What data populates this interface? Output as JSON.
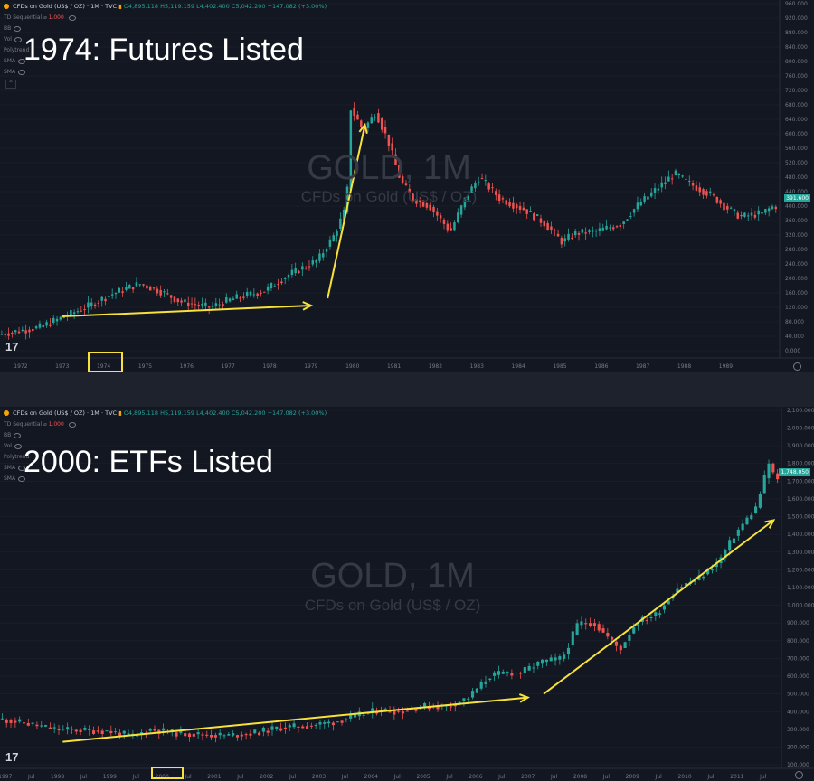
{
  "colors": {
    "bg": "#131722",
    "up": "#26a69a",
    "down": "#ef5350",
    "arrow": "#f7e13b",
    "grid": "#1e222d",
    "axis": "#787b86",
    "title": "#ffffff",
    "watermark": "#363a45"
  },
  "charts": [
    {
      "header": {
        "symbol": "CFDs on Gold (US$ / OZ) · 1M · TVC",
        "ohlc": "O4,895.118 H5,119.159 L4,402.400 C5,042.200 +147.082 (+3.00%)"
      },
      "indicators": [
        {
          "name": "TD Sequential",
          "value": "1.000"
        },
        {
          "name": "BB",
          "value": ""
        },
        {
          "name": "Vol",
          "value": ""
        },
        {
          "name": "Polytrend",
          "value": ""
        },
        {
          "name": "SMA",
          "value": ""
        },
        {
          "name": "SMA",
          "value": ""
        }
      ],
      "collapse_icon": "chevron-up-icon",
      "annotation": "1974: Futures Listed",
      "watermark": {
        "symbol": "GOLD, 1M",
        "name": "CFDs on Gold (US$ / OZ)"
      },
      "price_tag": "391.600",
      "logo": "17",
      "highlighted_tick": "1974"
    },
    {
      "header": {
        "symbol": "CFDs on Gold (US$ / OZ) · 1M · TVC",
        "ohlc": "O4,895.118 H5,119.159 L4,402.400 C5,042.200 +147.082 (+3.00%)"
      },
      "indicators": [
        {
          "name": "TD Sequential",
          "value": "1.000"
        },
        {
          "name": "BB",
          "value": ""
        },
        {
          "name": "Vol",
          "value": ""
        },
        {
          "name": "Polytrend",
          "value": ""
        },
        {
          "name": "SMA",
          "value": ""
        },
        {
          "name": "SMA",
          "value": ""
        }
      ],
      "annotation": "2000: ETFs Listed",
      "watermark": {
        "symbol": "GOLD, 1M",
        "name": "CFDs on Gold (US$ / OZ)"
      },
      "price_tag": "1,748.050",
      "logo": "17",
      "highlighted_tick": "2000"
    }
  ],
  "chart_data": [
    {
      "type": "candlestick",
      "title": "GOLD, 1M",
      "subtitle": "CFDs on Gold (US$ / OZ)",
      "x_labels": [
        "1972",
        "1973",
        "1974",
        "1975",
        "1976",
        "1977",
        "1978",
        "1979",
        "1980",
        "1981",
        "1982",
        "1983",
        "1984",
        "1985",
        "1986",
        "1987",
        "1988",
        "1989"
      ],
      "y_ticks": [
        "960.000",
        "920.000",
        "880.000",
        "840.000",
        "800.000",
        "760.000",
        "720.000",
        "680.000",
        "640.000",
        "600.000",
        "560.000",
        "520.000",
        "480.000",
        "440.000",
        "400.000",
        "360.000",
        "320.000",
        "280.000",
        "240.000",
        "200.000",
        "160.000",
        "120.000",
        "80.000",
        "40.000",
        "0.000"
      ],
      "ylim": [
        -20,
        970
      ],
      "x_range": [
        1971.5,
        1990.3
      ],
      "trend_points": [
        [
          1971.5,
          45
        ],
        [
          1972.5,
          65
        ],
        [
          1973.3,
          105
        ],
        [
          1973.7,
          125
        ],
        [
          1974.2,
          155
        ],
        [
          1974.9,
          185
        ],
        [
          1975.4,
          165
        ],
        [
          1975.9,
          135
        ],
        [
          1976.6,
          120
        ],
        [
          1977.2,
          145
        ],
        [
          1977.9,
          165
        ],
        [
          1978.5,
          210
        ],
        [
          1979.2,
          250
        ],
        [
          1979.6,
          320
        ],
        [
          1979.9,
          400
        ],
        [
          1980.0,
          670
        ],
        [
          1980.3,
          610
        ],
        [
          1980.6,
          660
        ],
        [
          1980.9,
          580
        ],
        [
          1981.2,
          470
        ],
        [
          1981.5,
          420
        ],
        [
          1981.9,
          400
        ],
        [
          1982.4,
          330
        ],
        [
          1982.8,
          430
        ],
        [
          1983.1,
          480
        ],
        [
          1983.6,
          420
        ],
        [
          1984.2,
          390
        ],
        [
          1984.7,
          350
        ],
        [
          1985.1,
          300
        ],
        [
          1985.4,
          325
        ],
        [
          1985.9,
          330
        ],
        [
          1986.5,
          350
        ],
        [
          1986.9,
          400
        ],
        [
          1987.4,
          450
        ],
        [
          1987.8,
          490
        ],
        [
          1988.2,
          460
        ],
        [
          1988.7,
          430
        ],
        [
          1989.0,
          400
        ],
        [
          1989.4,
          370
        ],
        [
          1989.9,
          380
        ],
        [
          1990.2,
          400
        ]
      ],
      "arrows": [
        {
          "from": [
            1973.0,
            95
          ],
          "to": [
            1979.0,
            125
          ]
        },
        {
          "from": [
            1979.4,
            145
          ],
          "to": [
            1980.3,
            625
          ]
        }
      ]
    },
    {
      "type": "candlestick",
      "title": "GOLD, 1M",
      "subtitle": "CFDs on Gold (US$ / OZ)",
      "x_labels": [
        "1997",
        "Jul",
        "1998",
        "Jul",
        "1999",
        "Jul",
        "2000",
        "Jul",
        "2001",
        "Jul",
        "2002",
        "Jul",
        "2003",
        "Jul",
        "2004",
        "Jul",
        "2005",
        "Jul",
        "2006",
        "Jul",
        "2007",
        "Jul",
        "2008",
        "Jul",
        "2009",
        "Jul",
        "2010",
        "Jul",
        "2011",
        "Jul"
      ],
      "y_ticks": [
        "2,100.000",
        "2,000.000",
        "1,900.000",
        "1,800.000",
        "1,700.000",
        "1,600.000",
        "1,500.000",
        "1,400.000",
        "1,300.000",
        "1,200.000",
        "1,100.000",
        "1,000.000",
        "900.000",
        "800.000",
        "700.000",
        "600.000",
        "500.000",
        "400.000",
        "300.000",
        "200.000",
        "100.000"
      ],
      "ylim": [
        80,
        2120
      ],
      "x_range": [
        1996.9,
        2011.85
      ],
      "trend_points": [
        [
          1996.9,
          360
        ],
        [
          1997.5,
          330
        ],
        [
          1998.0,
          300
        ],
        [
          1998.5,
          295
        ],
        [
          1999.0,
          290
        ],
        [
          1999.5,
          260
        ],
        [
          1999.8,
          300
        ],
        [
          2000.3,
          280
        ],
        [
          2000.8,
          270
        ],
        [
          2001.3,
          265
        ],
        [
          2001.8,
          280
        ],
        [
          2002.3,
          310
        ],
        [
          2002.8,
          320
        ],
        [
          2003.3,
          340
        ],
        [
          2003.8,
          380
        ],
        [
          2004.2,
          410
        ],
        [
          2004.6,
          400
        ],
        [
          2005.0,
          430
        ],
        [
          2005.5,
          430
        ],
        [
          2005.9,
          480
        ],
        [
          2006.3,
          600
        ],
        [
          2006.6,
          620
        ],
        [
          2006.9,
          620
        ],
        [
          2007.3,
          680
        ],
        [
          2007.7,
          700
        ],
        [
          2008.0,
          900
        ],
        [
          2008.3,
          900
        ],
        [
          2008.8,
          750
        ],
        [
          2009.1,
          900
        ],
        [
          2009.5,
          950
        ],
        [
          2009.9,
          1100
        ],
        [
          2010.3,
          1150
        ],
        [
          2010.7,
          1250
        ],
        [
          2011.0,
          1400
        ],
        [
          2011.4,
          1550
        ],
        [
          2011.65,
          1800
        ],
        [
          2011.8,
          1700
        ]
      ],
      "arrows": [
        {
          "from": [
            1998.1,
            230
          ],
          "to": [
            2007.0,
            480
          ]
        },
        {
          "from": [
            2007.3,
            500
          ],
          "to": [
            2011.7,
            1480
          ]
        }
      ]
    }
  ]
}
